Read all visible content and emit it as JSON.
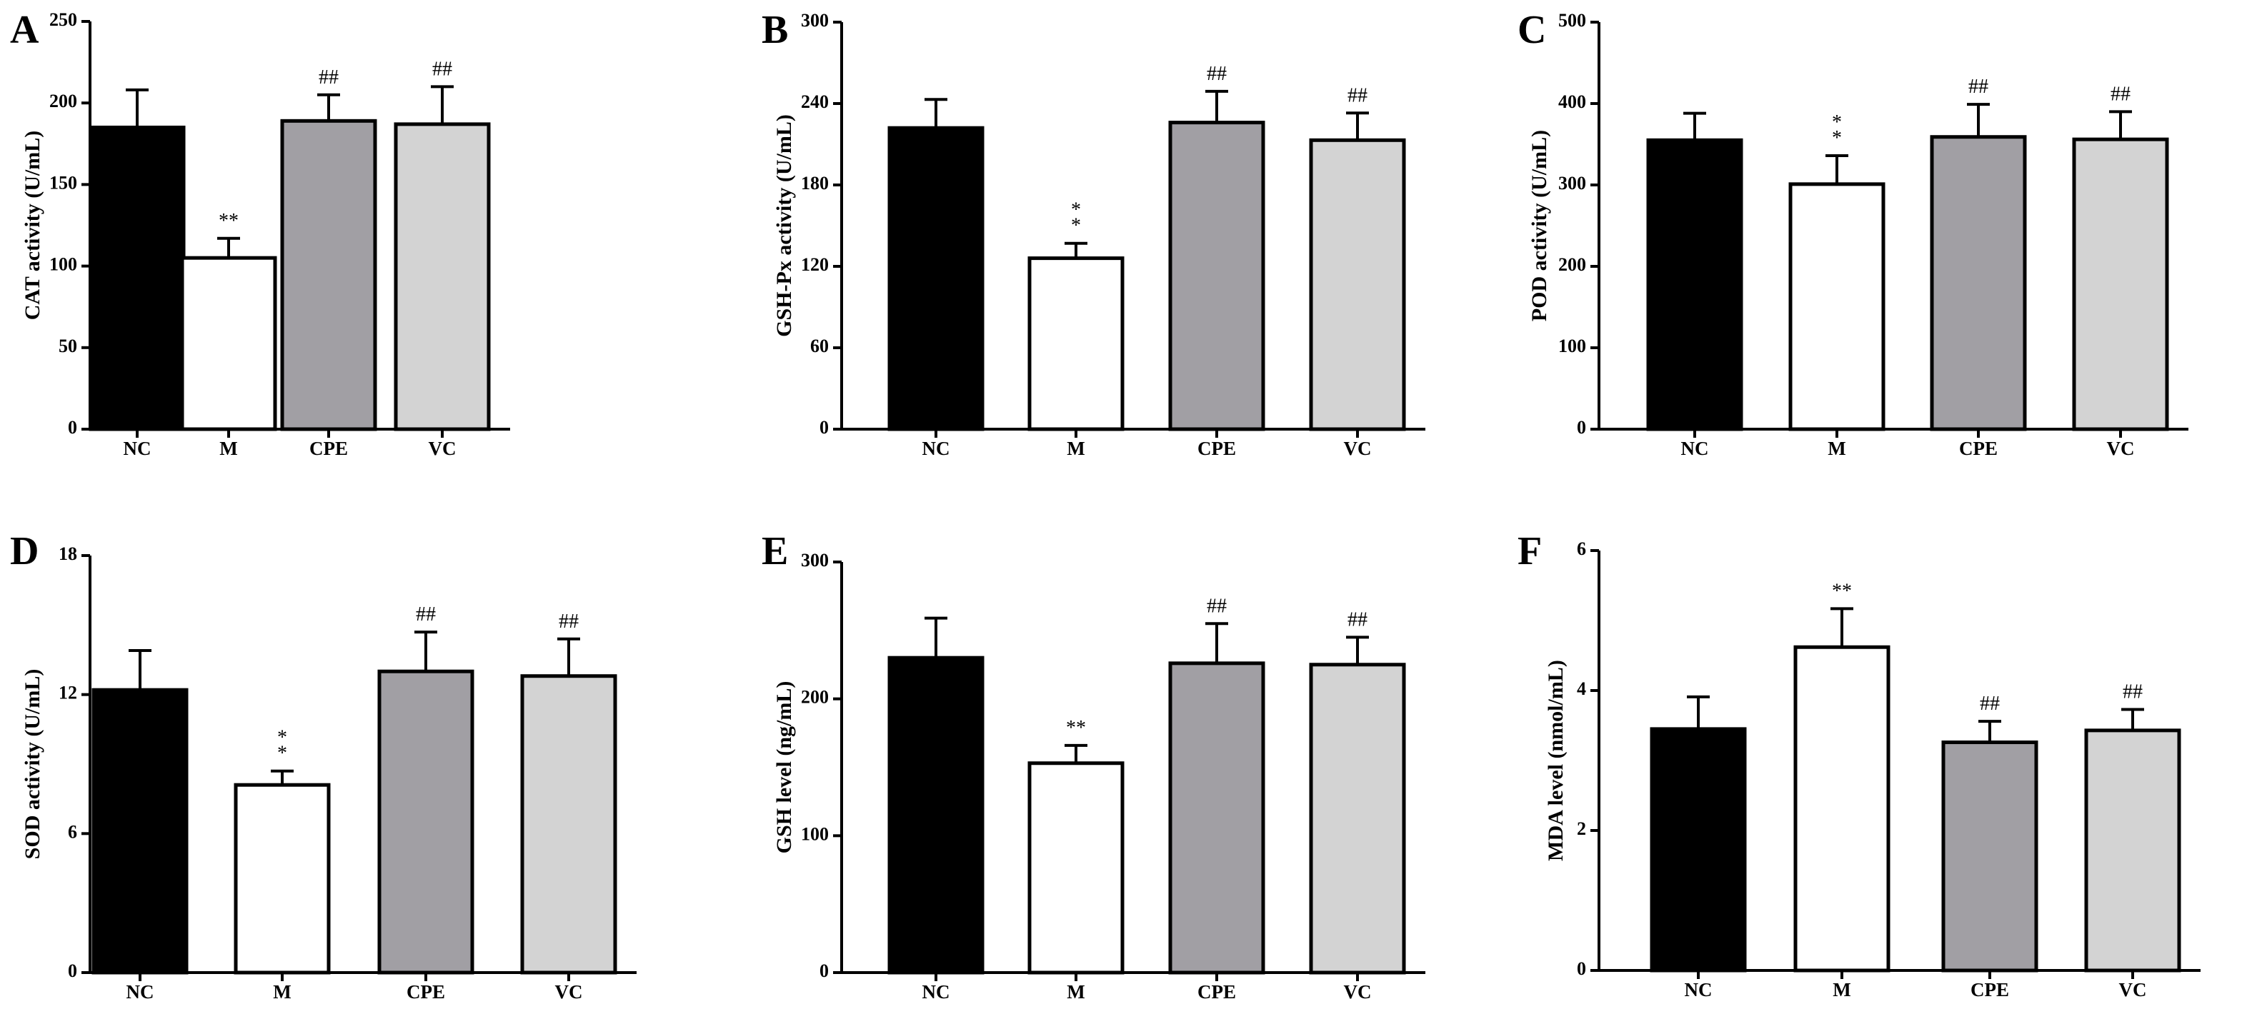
{
  "chart_data": [
    {
      "type": "bar",
      "panel": "A",
      "ylabel": "CAT activity (U/mL)",
      "categories": [
        "NC",
        "M",
        "CPE",
        "VC"
      ],
      "values": [
        185,
        105,
        189,
        187
      ],
      "errors": [
        23,
        12,
        16,
        23
      ],
      "significance": [
        "",
        "**",
        "##",
        "##"
      ],
      "bar_colors": [
        "#000000",
        "#ffffff",
        "#a19fa4",
        "#d3d3d3"
      ],
      "yticks": [
        0,
        50,
        100,
        150,
        200,
        250
      ],
      "ylim": [
        0,
        250
      ]
    },
    {
      "type": "bar",
      "panel": "B",
      "ylabel": "GSH-Px activity (U/mL)",
      "categories": [
        "NC",
        "M",
        "CPE",
        "VC"
      ],
      "values": [
        222,
        126,
        226,
        213
      ],
      "errors": [
        21,
        11,
        23,
        20
      ],
      "significance": [
        "",
        "*\n*",
        "##",
        "##"
      ],
      "bar_colors": [
        "#000000",
        "#ffffff",
        "#a19fa4",
        "#d3d3d3"
      ],
      "yticks": [
        0,
        60,
        120,
        180,
        240,
        300
      ],
      "ylim": [
        0,
        300
      ]
    },
    {
      "type": "bar",
      "panel": "C",
      "ylabel": "POD activity (U/mL)",
      "categories": [
        "NC",
        "M",
        "CPE",
        "VC"
      ],
      "values": [
        355,
        301,
        359,
        356
      ],
      "errors": [
        33,
        35,
        40,
        34
      ],
      "significance": [
        "",
        "*\n*",
        "##",
        "##"
      ],
      "bar_colors": [
        "#000000",
        "#ffffff",
        "#a19fa4",
        "#d3d3d3"
      ],
      "yticks": [
        0,
        100,
        200,
        300,
        400,
        500
      ],
      "ylim": [
        0,
        500
      ]
    },
    {
      "type": "bar",
      "panel": "D",
      "ylabel": "SOD activity (U/mL)",
      "categories": [
        "NC",
        "M",
        "CPE",
        "VC"
      ],
      "values": [
        12.2,
        8.1,
        13.0,
        12.8
      ],
      "errors": [
        1.7,
        0.6,
        1.7,
        1.6
      ],
      "significance": [
        "",
        "*\n*",
        "##",
        "##"
      ],
      "bar_colors": [
        "#000000",
        "#ffffff",
        "#a19fa4",
        "#d3d3d3"
      ],
      "yticks": [
        0,
        6,
        12,
        18
      ],
      "ylim": [
        0,
        18
      ]
    },
    {
      "type": "bar",
      "panel": "E",
      "ylabel": "GSH level (ng/mL)",
      "categories": [
        "NC",
        "M",
        "CPE",
        "VC"
      ],
      "values": [
        230,
        153,
        226,
        225
      ],
      "errors": [
        29,
        13,
        29,
        20
      ],
      "significance": [
        "",
        "**",
        "##",
        "##"
      ],
      "bar_colors": [
        "#000000",
        "#ffffff",
        "#a19fa4",
        "#d3d3d3"
      ],
      "yticks": [
        0,
        100,
        200,
        300
      ],
      "ylim": [
        0,
        300
      ]
    },
    {
      "type": "bar",
      "panel": "F",
      "ylabel": "MDA level (nmol/mL)",
      "categories": [
        "NC",
        "M",
        "CPE",
        "VC"
      ],
      "values": [
        3.45,
        4.62,
        3.26,
        3.43
      ],
      "errors": [
        0.46,
        0.55,
        0.3,
        0.3
      ],
      "significance": [
        "",
        "**",
        "##",
        "##"
      ],
      "bar_colors": [
        "#000000",
        "#ffffff",
        "#a19fa4",
        "#d3d3d3"
      ],
      "yticks": [
        0,
        2,
        4,
        6
      ],
      "ylim": [
        0,
        6
      ]
    }
  ]
}
